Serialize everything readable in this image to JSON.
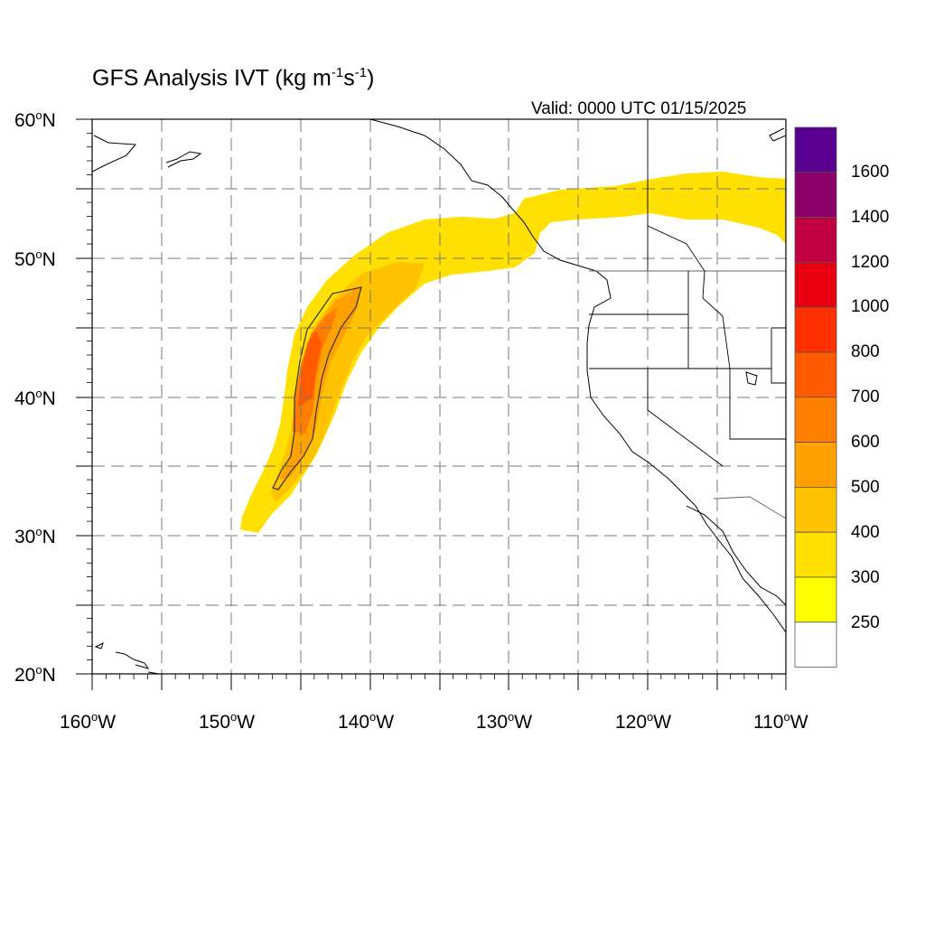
{
  "title": {
    "main": "GFS Analysis IVT (kg m",
    "sup1": "-1",
    "mid": "s",
    "sup2": "-1",
    "end": ")"
  },
  "valid_label": "Valid: 0000 UTC 01/15/2025",
  "lat_labels": [
    {
      "deg": "60",
      "sup": "o",
      "hem": "N"
    },
    {
      "deg": "50",
      "sup": "o",
      "hem": "N"
    },
    {
      "deg": "40",
      "sup": "o",
      "hem": "N"
    },
    {
      "deg": "30",
      "sup": "o",
      "hem": "N"
    },
    {
      "deg": "20",
      "sup": "o",
      "hem": "N"
    }
  ],
  "lon_labels": [
    {
      "deg": "160",
      "sup": "o",
      "hem": "W"
    },
    {
      "deg": "150",
      "sup": "o",
      "hem": "W"
    },
    {
      "deg": "140",
      "sup": "o",
      "hem": "W"
    },
    {
      "deg": "130",
      "sup": "o",
      "hem": "W"
    },
    {
      "deg": "120",
      "sup": "o",
      "hem": "W"
    },
    {
      "deg": "110",
      "sup": "o",
      "hem": "W"
    }
  ],
  "colorbar": {
    "labels": [
      "1600",
      "1400",
      "1200",
      "1000",
      "800",
      "700",
      "600",
      "500",
      "400",
      "300",
      "250"
    ],
    "colors": [
      "#5a0090",
      "#8a0068",
      "#c00040",
      "#e80010",
      "#ff3000",
      "#ff5a00",
      "#ff7e00",
      "#ffa200",
      "#ffc200",
      "#ffe000",
      "#ffff00",
      "#ffffff"
    ]
  },
  "map": {
    "extent": {
      "lon_min": -160,
      "lon_max": -110,
      "lat_min": 20,
      "lat_max": 60
    },
    "gridline_style": "dashed",
    "ivt_contour_level": 500
  }
}
